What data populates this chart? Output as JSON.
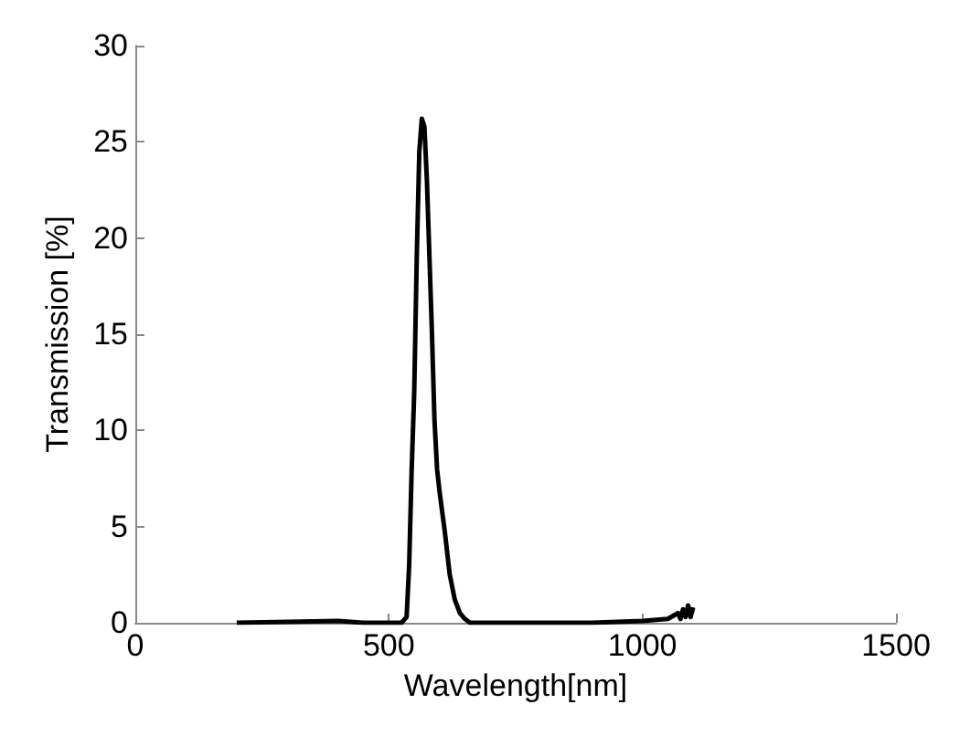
{
  "chart_data": {
    "type": "line",
    "xlabel": "Wavelength[nm]",
    "ylabel": "Transmission [%]",
    "xlim": [
      0,
      1500
    ],
    "xticks": [
      0,
      500,
      1000,
      1500
    ],
    "ylim": [
      0,
      30
    ],
    "yticks": [
      0,
      5,
      10,
      15,
      20,
      25,
      30
    ],
    "grid": false,
    "marker": "none",
    "line_style": "solid",
    "series": [
      {
        "color": "#000000",
        "x": [
          200,
          400,
          450,
          525,
          535,
          540,
          545,
          550,
          555,
          560,
          565,
          570,
          575,
          580,
          585,
          590,
          595,
          600,
          610,
          620,
          630,
          640,
          650,
          660,
          670,
          900,
          1000,
          1050,
          1070,
          1075,
          1080,
          1085,
          1090,
          1095,
          1100
        ],
        "values": [
          0,
          0.1,
          0,
          0,
          0.3,
          3,
          8,
          12,
          19,
          24.5,
          26.2,
          25.8,
          23,
          19,
          15,
          10.5,
          8,
          6.8,
          4.8,
          2.5,
          1.2,
          0.5,
          0.2,
          0,
          0,
          0,
          0.1,
          0.2,
          0.5,
          0.2,
          0.7,
          0.3,
          0.9,
          0.3,
          0.8
        ]
      }
    ]
  }
}
